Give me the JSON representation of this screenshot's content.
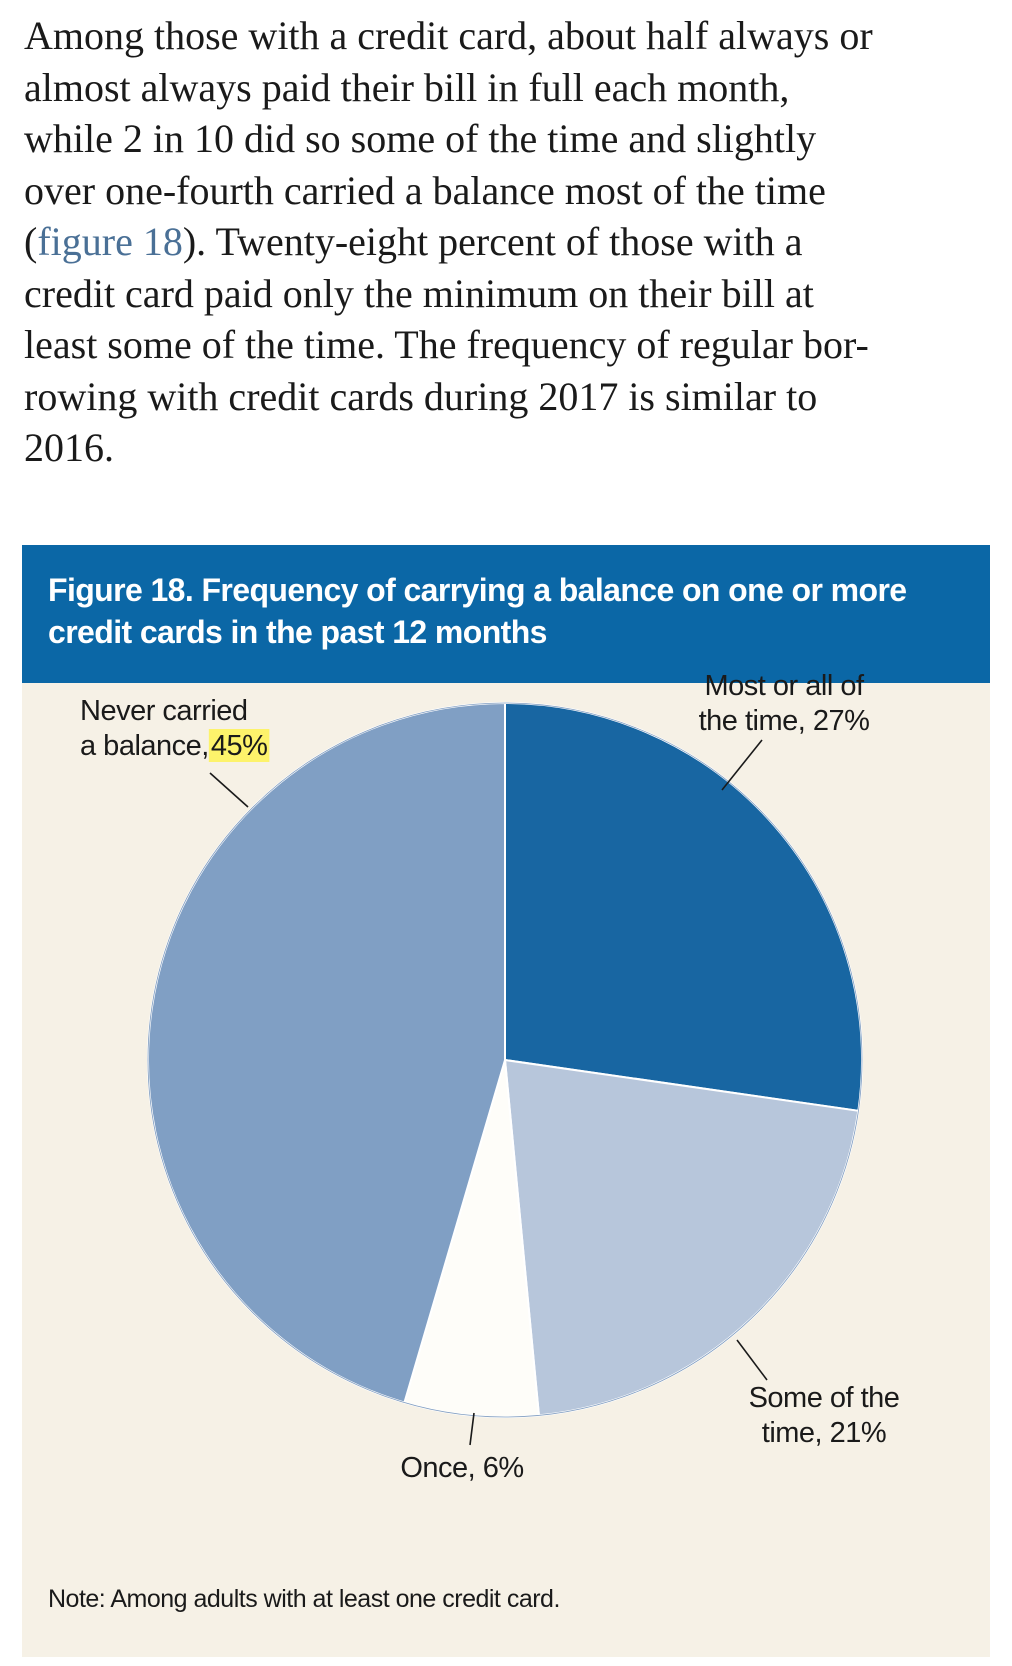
{
  "paragraph": {
    "lines": [
      "Among those with a credit card, about half always or",
      "almost always paid their bill in full each month,",
      "while 2 in 10 did so some of the time and slightly",
      "over one-fourth carried a balance most of the time",
      null,
      "credit card paid only the minimum on their bill at",
      "least some of the time. The frequency of regular bor-",
      "rowing with credit cards during 2017 is similar to",
      "2016."
    ],
    "line5_open": "(",
    "line5_link": "figure 18",
    "line5_rest": "). Twenty-eight percent of those with a"
  },
  "figure": {
    "title_line1": "Figure 18. Frequency of carrying a balance on one or more",
    "title_line2": "credit cards in the past 12 months",
    "note": "Note: Among adults with at least one credit card.",
    "colors": {
      "header": "#0b67a6",
      "background": "#f6f1e6",
      "highlight": "#fdf36b"
    }
  },
  "chart_data": {
    "type": "pie",
    "title": "Figure 18. Frequency of carrying a balance on one or more credit cards in the past 12 months",
    "start": "12 o'clock, clockwise",
    "slices": [
      {
        "label": "Most or all of the time",
        "value": 27,
        "color": "#1866a2",
        "label_lines": [
          "Most or all of",
          "the time, 27%"
        ]
      },
      {
        "label": "Some of the time",
        "value": 21,
        "color": "#b7c6db",
        "label_lines": [
          "Some of the",
          "time, 21%"
        ]
      },
      {
        "label": "Once",
        "value": 6,
        "color": "#fefdf9",
        "label_lines": [
          "Once, 6%"
        ]
      },
      {
        "label": "Never carried a balance",
        "value": 45,
        "color": "#809fc4",
        "label_lines": [
          "Never carried",
          "a balance, "
        ],
        "highlight_text": "45%"
      }
    ]
  }
}
